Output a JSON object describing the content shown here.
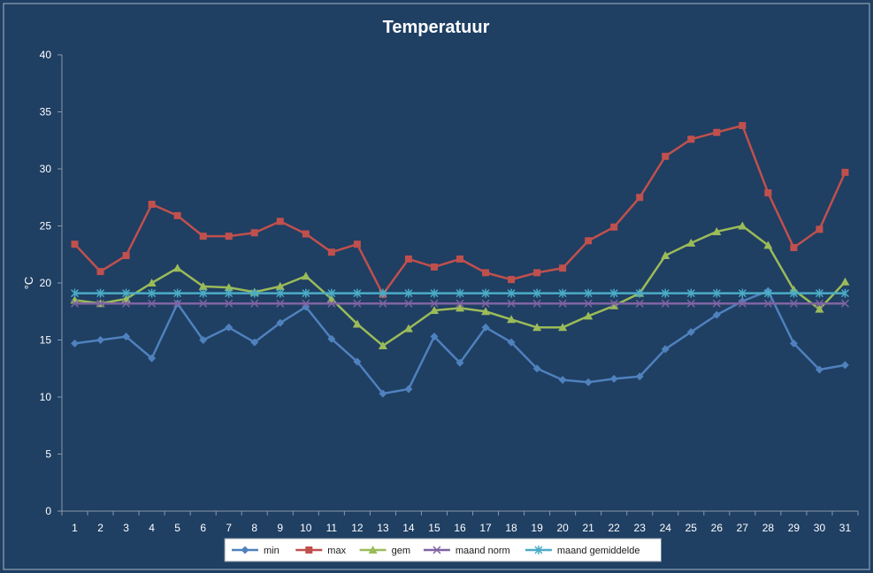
{
  "chart_data": {
    "type": "line",
    "title": "Temperatuur",
    "xlabel": "",
    "ylabel": "°C",
    "ylim": [
      0,
      40
    ],
    "yticks": [
      0,
      5,
      10,
      15,
      20,
      25,
      30,
      35,
      40
    ],
    "categories": [
      "1",
      "2",
      "3",
      "4",
      "5",
      "6",
      "7",
      "8",
      "9",
      "10",
      "11",
      "12",
      "13",
      "14",
      "15",
      "16",
      "17",
      "18",
      "19",
      "20",
      "21",
      "22",
      "23",
      "24",
      "25",
      "26",
      "27",
      "28",
      "29",
      "30",
      "31"
    ],
    "grid": false,
    "legend_position": "bottom",
    "series": [
      {
        "name": "min",
        "color": "#4f81bd",
        "marker": "diamond",
        "values": [
          14.7,
          15.0,
          15.3,
          13.4,
          18.2,
          15.0,
          16.1,
          14.8,
          16.5,
          17.9,
          15.1,
          13.1,
          10.3,
          10.7,
          15.3,
          13.0,
          16.1,
          14.8,
          12.5,
          11.5,
          11.3,
          11.6,
          11.8,
          14.2,
          15.7,
          17.2,
          18.4,
          19.3,
          14.7,
          12.4,
          12.8
        ]
      },
      {
        "name": "max",
        "color": "#c0504d",
        "marker": "square",
        "values": [
          23.4,
          21.0,
          22.4,
          26.9,
          25.9,
          24.1,
          24.1,
          24.4,
          25.4,
          24.3,
          22.7,
          23.4,
          19.0,
          22.1,
          21.4,
          22.1,
          20.9,
          20.3,
          20.9,
          21.3,
          23.7,
          24.9,
          27.5,
          31.1,
          32.6,
          33.2,
          33.8,
          27.9,
          23.1,
          24.7,
          29.7
        ]
      },
      {
        "name": "gem",
        "color": "#9bbb59",
        "marker": "triangle",
        "values": [
          18.5,
          18.2,
          18.6,
          20.0,
          21.3,
          19.7,
          19.6,
          19.2,
          19.7,
          20.6,
          18.6,
          16.4,
          14.5,
          16.0,
          17.6,
          17.8,
          17.5,
          16.8,
          16.1,
          16.1,
          17.1,
          18.0,
          19.1,
          22.4,
          23.5,
          24.5,
          25.0,
          23.3,
          19.4,
          17.7,
          20.1
        ]
      },
      {
        "name": "maand norm",
        "color": "#8064a2",
        "marker": "x",
        "values": [
          18.2,
          18.2,
          18.2,
          18.2,
          18.2,
          18.2,
          18.2,
          18.2,
          18.2,
          18.2,
          18.2,
          18.2,
          18.2,
          18.2,
          18.2,
          18.2,
          18.2,
          18.2,
          18.2,
          18.2,
          18.2,
          18.2,
          18.2,
          18.2,
          18.2,
          18.2,
          18.2,
          18.2,
          18.2,
          18.2,
          18.2
        ]
      },
      {
        "name": "maand gemiddelde",
        "color": "#4bacc6",
        "marker": "star",
        "values": [
          19.1,
          19.1,
          19.1,
          19.1,
          19.1,
          19.1,
          19.1,
          19.1,
          19.1,
          19.1,
          19.1,
          19.1,
          19.1,
          19.1,
          19.1,
          19.1,
          19.1,
          19.1,
          19.1,
          19.1,
          19.1,
          19.1,
          19.1,
          19.1,
          19.1,
          19.1,
          19.1,
          19.1,
          19.1,
          19.1,
          19.1
        ]
      }
    ]
  }
}
